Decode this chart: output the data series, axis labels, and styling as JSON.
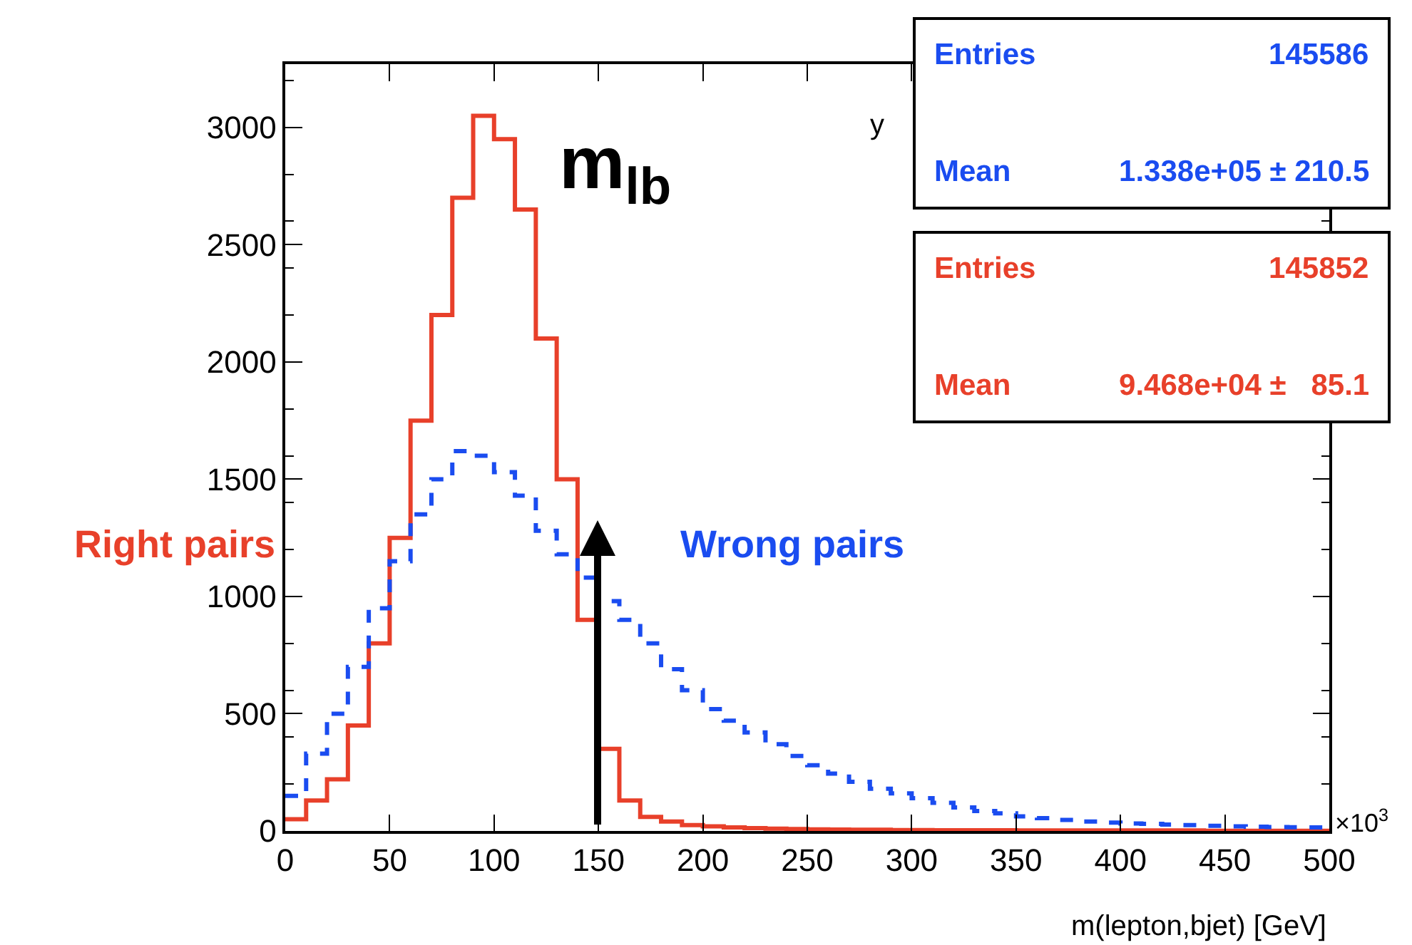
{
  "chart_data": {
    "type": "histogram",
    "xlabel": "m(lepton,bjet) [GeV]",
    "bins": [
      0,
      10,
      20,
      30,
      40,
      50,
      60,
      70,
      80,
      90,
      100,
      110,
      120,
      130,
      140,
      150,
      160,
      170,
      180,
      190,
      200,
      210,
      220,
      230,
      240,
      250,
      260,
      270,
      280,
      290,
      300,
      310,
      320,
      330,
      340,
      350,
      360,
      370,
      380,
      390,
      400,
      410,
      420,
      430,
      440,
      450,
      460,
      470,
      480,
      490,
      500
    ],
    "series": [
      {
        "name": "Right pairs",
        "color": "#e8402a",
        "line_style": "solid",
        "values": [
          50,
          130,
          220,
          450,
          800,
          1250,
          1750,
          2200,
          2700,
          3050,
          2950,
          2650,
          2100,
          1500,
          900,
          350,
          130,
          60,
          40,
          25,
          20,
          15,
          12,
          10,
          8,
          7,
          6,
          5,
          5,
          4,
          4,
          3,
          3,
          3,
          3,
          2,
          2,
          2,
          2,
          2,
          2,
          2,
          2,
          2,
          1,
          1,
          1,
          1,
          1,
          1
        ]
      },
      {
        "name": "Wrong pairs",
        "color": "#1a4cf0",
        "line_style": "dashed",
        "values": [
          150,
          330,
          500,
          700,
          950,
          1150,
          1350,
          1500,
          1620,
          1600,
          1530,
          1430,
          1280,
          1180,
          1080,
          980,
          900,
          800,
          690,
          600,
          520,
          470,
          420,
          370,
          320,
          280,
          245,
          210,
          180,
          160,
          140,
          120,
          100,
          85,
          75,
          62,
          55,
          47,
          40,
          36,
          32,
          30,
          27,
          25,
          22,
          20,
          18,
          17,
          16,
          15
        ]
      }
    ],
    "xlim": [
      0,
      500
    ],
    "xticks": [
      0,
      50,
      100,
      150,
      200,
      250,
      300,
      350,
      400,
      450,
      500
    ],
    "ylim": [
      0,
      3270
    ],
    "yticks": [
      0,
      500,
      1000,
      1500,
      2000,
      2500,
      3000
    ],
    "grid": false,
    "legend": false,
    "annotations": [
      "m$_{lb}$",
      "y",
      "Entries",
      "145586",
      "Mean",
      "1.338e+05 ± 210.5",
      "Entries",
      "145852",
      "Mean",
      "9.468e+04 ±   85.1",
      "×10$^{3}$"
    ]
  }
}
